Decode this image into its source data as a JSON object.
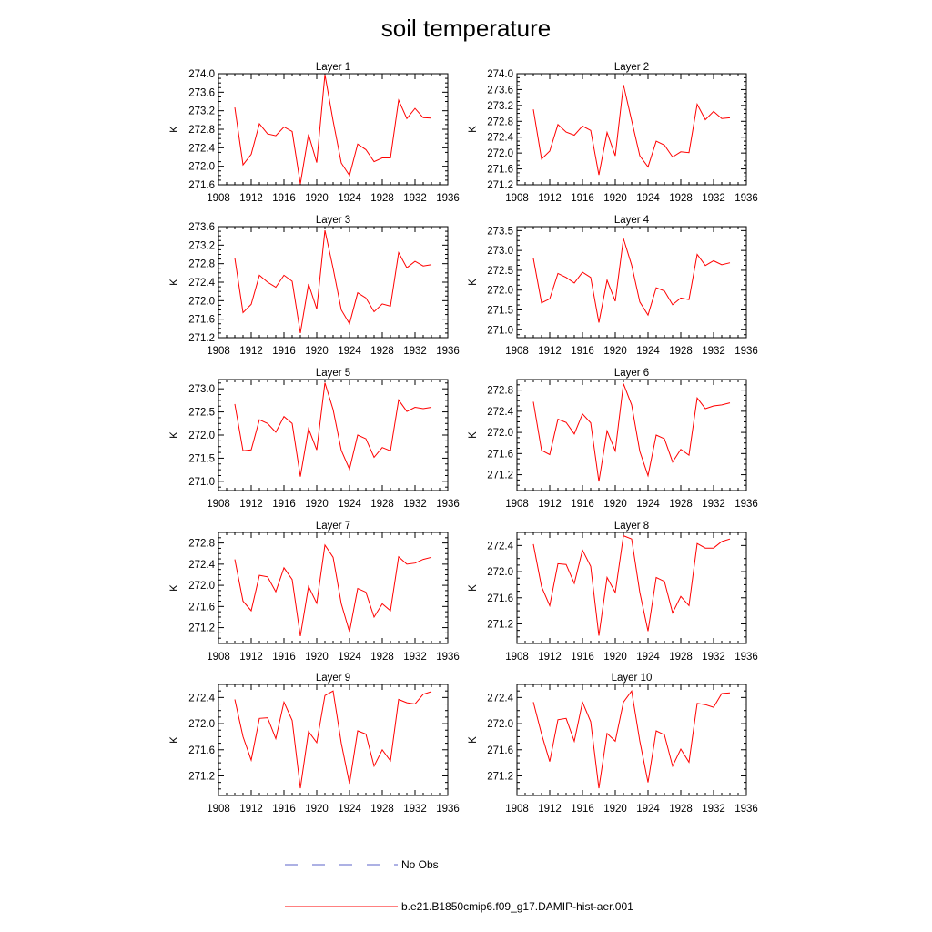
{
  "title": "soil temperature",
  "legend": {
    "obs_label": "No Obs",
    "obs_color": "#5b63c9",
    "model_label": "b.e21.B1850cmip6.f09_g17.DAMIP-hist-aer.001",
    "model_color": "#ff0000"
  },
  "chart_data": [
    {
      "type": "line",
      "title": "Layer 1",
      "ylabel": "K",
      "xlim": [
        1908,
        1936
      ],
      "xticks": [
        1908,
        1912,
        1916,
        1920,
        1924,
        1928,
        1932,
        1936
      ],
      "ylim": [
        271.6,
        274.0
      ],
      "yticks": [
        "271.6",
        "272.0",
        "272.4",
        "272.8",
        "273.2",
        "273.6",
        "274.0"
      ],
      "x": [
        1910,
        1911,
        1912,
        1913,
        1914,
        1915,
        1916,
        1917,
        1918,
        1919,
        1920,
        1921,
        1922,
        1923,
        1924,
        1925,
        1926,
        1927,
        1928,
        1929,
        1930,
        1931,
        1932,
        1933,
        1934
      ],
      "series": [
        {
          "name": "b.e21.B1850cmip6.f09_g17.DAMIP-hist-aer.001",
          "values": [
            273.27,
            272.03,
            272.26,
            272.92,
            272.7,
            272.66,
            272.85,
            272.75,
            271.62,
            272.69,
            272.08,
            273.98,
            272.98,
            272.07,
            271.8,
            272.48,
            272.36,
            272.1,
            272.18,
            272.18,
            273.43,
            273.03,
            273.25,
            273.05,
            273.04
          ]
        }
      ]
    },
    {
      "type": "line",
      "title": "Layer 2",
      "ylabel": "K",
      "xlim": [
        1908,
        1936
      ],
      "xticks": [
        1908,
        1912,
        1916,
        1920,
        1924,
        1928,
        1932,
        1936
      ],
      "ylim": [
        271.2,
        274.0
      ],
      "yticks": [
        "271.2",
        "271.6",
        "272.0",
        "272.4",
        "272.8",
        "273.2",
        "273.6",
        "274.0"
      ],
      "x": [
        1910,
        1911,
        1912,
        1913,
        1914,
        1915,
        1916,
        1917,
        1918,
        1919,
        1920,
        1921,
        1922,
        1923,
        1924,
        1925,
        1926,
        1927,
        1928,
        1929,
        1930,
        1931,
        1932,
        1933,
        1934
      ],
      "series": [
        {
          "name": "b.e21.B1850cmip6.f09_g17.DAMIP-hist-aer.001",
          "values": [
            273.1,
            271.85,
            272.05,
            272.72,
            272.53,
            272.45,
            272.68,
            272.57,
            271.45,
            272.52,
            271.93,
            273.72,
            272.82,
            271.93,
            271.65,
            272.3,
            272.2,
            271.9,
            272.03,
            272.01,
            273.23,
            272.84,
            273.05,
            272.87,
            272.89
          ]
        }
      ]
    },
    {
      "type": "line",
      "title": "Layer 3",
      "ylabel": "K",
      "xlim": [
        1908,
        1936
      ],
      "xticks": [
        1908,
        1912,
        1916,
        1920,
        1924,
        1928,
        1932,
        1936
      ],
      "ylim": [
        271.2,
        273.6
      ],
      "yticks": [
        "271.2",
        "271.6",
        "272.0",
        "272.4",
        "272.8",
        "273.2",
        "273.6"
      ],
      "x": [
        1910,
        1911,
        1912,
        1913,
        1914,
        1915,
        1916,
        1917,
        1918,
        1919,
        1920,
        1921,
        1922,
        1923,
        1924,
        1925,
        1926,
        1927,
        1928,
        1929,
        1930,
        1931,
        1932,
        1933,
        1934
      ],
      "series": [
        {
          "name": "b.e21.B1850cmip6.f09_g17.DAMIP-hist-aer.001",
          "values": [
            272.92,
            271.74,
            271.92,
            272.55,
            272.4,
            272.29,
            272.55,
            272.42,
            271.3,
            272.36,
            271.82,
            273.52,
            272.7,
            271.8,
            271.5,
            272.17,
            272.06,
            271.76,
            271.93,
            271.88,
            273.04,
            272.71,
            272.85,
            272.75,
            272.78
          ]
        }
      ]
    },
    {
      "type": "line",
      "title": "Layer 4",
      "ylabel": "K",
      "xlim": [
        1908,
        1936
      ],
      "xticks": [
        1908,
        1912,
        1916,
        1920,
        1924,
        1928,
        1932,
        1936
      ],
      "ylim": [
        270.8,
        273.6
      ],
      "yticks": [
        "271.0",
        "271.5",
        "272.0",
        "272.5",
        "273.0",
        "273.5"
      ],
      "x": [
        1910,
        1911,
        1912,
        1913,
        1914,
        1915,
        1916,
        1917,
        1918,
        1919,
        1920,
        1921,
        1922,
        1923,
        1924,
        1925,
        1926,
        1927,
        1928,
        1929,
        1930,
        1931,
        1932,
        1933,
        1934
      ],
      "series": [
        {
          "name": "b.e21.B1850cmip6.f09_g17.DAMIP-hist-aer.001",
          "values": [
            272.8,
            271.68,
            271.78,
            272.42,
            272.32,
            272.18,
            272.45,
            272.32,
            271.18,
            272.25,
            271.72,
            273.3,
            272.63,
            271.7,
            271.37,
            272.06,
            271.98,
            271.63,
            271.8,
            271.76,
            272.9,
            272.62,
            272.74,
            272.64,
            272.69
          ]
        }
      ]
    },
    {
      "type": "line",
      "title": "Layer 5",
      "ylabel": "K",
      "xlim": [
        1908,
        1936
      ],
      "xticks": [
        1908,
        1912,
        1916,
        1920,
        1924,
        1928,
        1932,
        1936
      ],
      "ylim": [
        270.8,
        273.2
      ],
      "yticks": [
        "271.0",
        "271.5",
        "272.0",
        "272.5",
        "273.0"
      ],
      "x": [
        1910,
        1911,
        1912,
        1913,
        1914,
        1915,
        1916,
        1917,
        1918,
        1919,
        1920,
        1921,
        1922,
        1923,
        1924,
        1925,
        1926,
        1927,
        1928,
        1929,
        1930,
        1931,
        1932,
        1933,
        1934
      ],
      "series": [
        {
          "name": "b.e21.B1850cmip6.f09_g17.DAMIP-hist-aer.001",
          "values": [
            272.67,
            271.66,
            271.68,
            272.33,
            272.25,
            272.06,
            272.4,
            272.25,
            271.1,
            272.14,
            271.68,
            273.13,
            272.55,
            271.67,
            271.26,
            272.0,
            271.92,
            271.52,
            271.73,
            271.66,
            272.76,
            272.51,
            272.6,
            272.57,
            272.6
          ]
        }
      ]
    },
    {
      "type": "line",
      "title": "Layer 6",
      "ylabel": "K",
      "xlim": [
        1908,
        1936
      ],
      "xticks": [
        1908,
        1912,
        1916,
        1920,
        1924,
        1928,
        1932,
        1936
      ],
      "ylim": [
        270.9,
        273.0
      ],
      "yticks": [
        "271.2",
        "271.6",
        "272.0",
        "272.4",
        "272.8"
      ],
      "x": [
        1910,
        1911,
        1912,
        1913,
        1914,
        1915,
        1916,
        1917,
        1918,
        1919,
        1920,
        1921,
        1922,
        1923,
        1924,
        1925,
        1926,
        1927,
        1928,
        1929,
        1930,
        1931,
        1932,
        1933,
        1934
      ],
      "series": [
        {
          "name": "b.e21.B1850cmip6.f09_g17.DAMIP-hist-aer.001",
          "values": [
            272.58,
            271.66,
            271.58,
            272.25,
            272.19,
            271.97,
            272.35,
            272.18,
            271.07,
            272.03,
            271.65,
            272.92,
            272.52,
            271.64,
            271.18,
            271.95,
            271.88,
            271.44,
            271.68,
            271.57,
            272.65,
            272.45,
            272.5,
            272.52,
            272.56
          ]
        }
      ]
    },
    {
      "type": "line",
      "title": "Layer 7",
      "ylabel": "K",
      "xlim": [
        1908,
        1936
      ],
      "xticks": [
        1908,
        1912,
        1916,
        1920,
        1924,
        1928,
        1932,
        1936
      ],
      "ylim": [
        270.9,
        273.0
      ],
      "yticks": [
        "271.2",
        "271.6",
        "272.0",
        "272.4",
        "272.8"
      ],
      "x": [
        1910,
        1911,
        1912,
        1913,
        1914,
        1915,
        1916,
        1917,
        1918,
        1919,
        1920,
        1921,
        1922,
        1923,
        1924,
        1925,
        1926,
        1927,
        1928,
        1929,
        1930,
        1931,
        1932,
        1933,
        1934
      ],
      "series": [
        {
          "name": "b.e21.B1850cmip6.f09_g17.DAMIP-hist-aer.001",
          "values": [
            272.49,
            271.7,
            271.52,
            272.19,
            272.16,
            271.88,
            272.33,
            272.11,
            271.04,
            271.98,
            271.66,
            272.76,
            272.53,
            271.65,
            271.12,
            271.94,
            271.87,
            271.4,
            271.65,
            271.52,
            272.54,
            272.4,
            272.42,
            272.49,
            272.53
          ]
        }
      ]
    },
    {
      "type": "line",
      "title": "Layer 8",
      "ylabel": "K",
      "xlim": [
        1908,
        1936
      ],
      "xticks": [
        1908,
        1912,
        1916,
        1920,
        1924,
        1928,
        1932,
        1936
      ],
      "ylim": [
        270.9,
        272.6
      ],
      "yticks": [
        "271.2",
        "271.6",
        "272.0",
        "272.4"
      ],
      "x": [
        1910,
        1911,
        1912,
        1913,
        1914,
        1915,
        1916,
        1917,
        1918,
        1919,
        1920,
        1921,
        1922,
        1923,
        1924,
        1925,
        1926,
        1927,
        1928,
        1929,
        1930,
        1931,
        1932,
        1933,
        1934
      ],
      "series": [
        {
          "name": "b.e21.B1850cmip6.f09_g17.DAMIP-hist-aer.001",
          "values": [
            272.42,
            271.77,
            271.48,
            272.12,
            272.11,
            271.82,
            272.33,
            272.08,
            271.02,
            271.91,
            271.68,
            272.55,
            272.5,
            271.68,
            271.09,
            271.91,
            271.85,
            271.37,
            271.62,
            271.48,
            272.43,
            272.36,
            272.36,
            272.46,
            272.5
          ]
        }
      ]
    },
    {
      "type": "line",
      "title": "Layer 9",
      "ylabel": "K",
      "xlim": [
        1908,
        1936
      ],
      "xticks": [
        1908,
        1912,
        1916,
        1920,
        1924,
        1928,
        1932,
        1936
      ],
      "ylim": [
        270.9,
        272.6
      ],
      "yticks": [
        "271.2",
        "271.6",
        "272.0",
        "272.4"
      ],
      "x": [
        1910,
        1911,
        1912,
        1913,
        1914,
        1915,
        1916,
        1917,
        1918,
        1919,
        1920,
        1921,
        1922,
        1923,
        1924,
        1925,
        1926,
        1927,
        1928,
        1929,
        1930,
        1931,
        1932,
        1933,
        1934
      ],
      "series": [
        {
          "name": "b.e21.B1850cmip6.f09_g17.DAMIP-hist-aer.001",
          "values": [
            272.37,
            271.8,
            271.44,
            272.08,
            272.09,
            271.77,
            272.33,
            272.05,
            271.01,
            271.88,
            271.71,
            272.43,
            272.5,
            271.7,
            271.08,
            271.89,
            271.84,
            271.35,
            271.6,
            271.43,
            272.37,
            272.32,
            272.3,
            272.45,
            272.49
          ]
        }
      ]
    },
    {
      "type": "line",
      "title": "Layer 10",
      "ylabel": "K",
      "xlim": [
        1908,
        1936
      ],
      "xticks": [
        1908,
        1912,
        1916,
        1920,
        1924,
        1928,
        1932,
        1936
      ],
      "ylim": [
        270.9,
        272.6
      ],
      "yticks": [
        "271.2",
        "271.6",
        "272.0",
        "272.4"
      ],
      "x": [
        1910,
        1911,
        1912,
        1913,
        1914,
        1915,
        1916,
        1917,
        1918,
        1919,
        1920,
        1921,
        1922,
        1923,
        1924,
        1925,
        1926,
        1927,
        1928,
        1929,
        1930,
        1931,
        1932,
        1933,
        1934
      ],
      "series": [
        {
          "name": "b.e21.B1850cmip6.f09_g17.DAMIP-hist-aer.001",
          "values": [
            272.33,
            271.84,
            271.42,
            272.06,
            272.08,
            271.73,
            272.33,
            272.03,
            271.01,
            271.85,
            271.73,
            272.33,
            272.5,
            271.73,
            271.1,
            271.89,
            271.83,
            271.35,
            271.61,
            271.41,
            272.31,
            272.29,
            272.25,
            272.46,
            272.47
          ]
        }
      ]
    }
  ]
}
